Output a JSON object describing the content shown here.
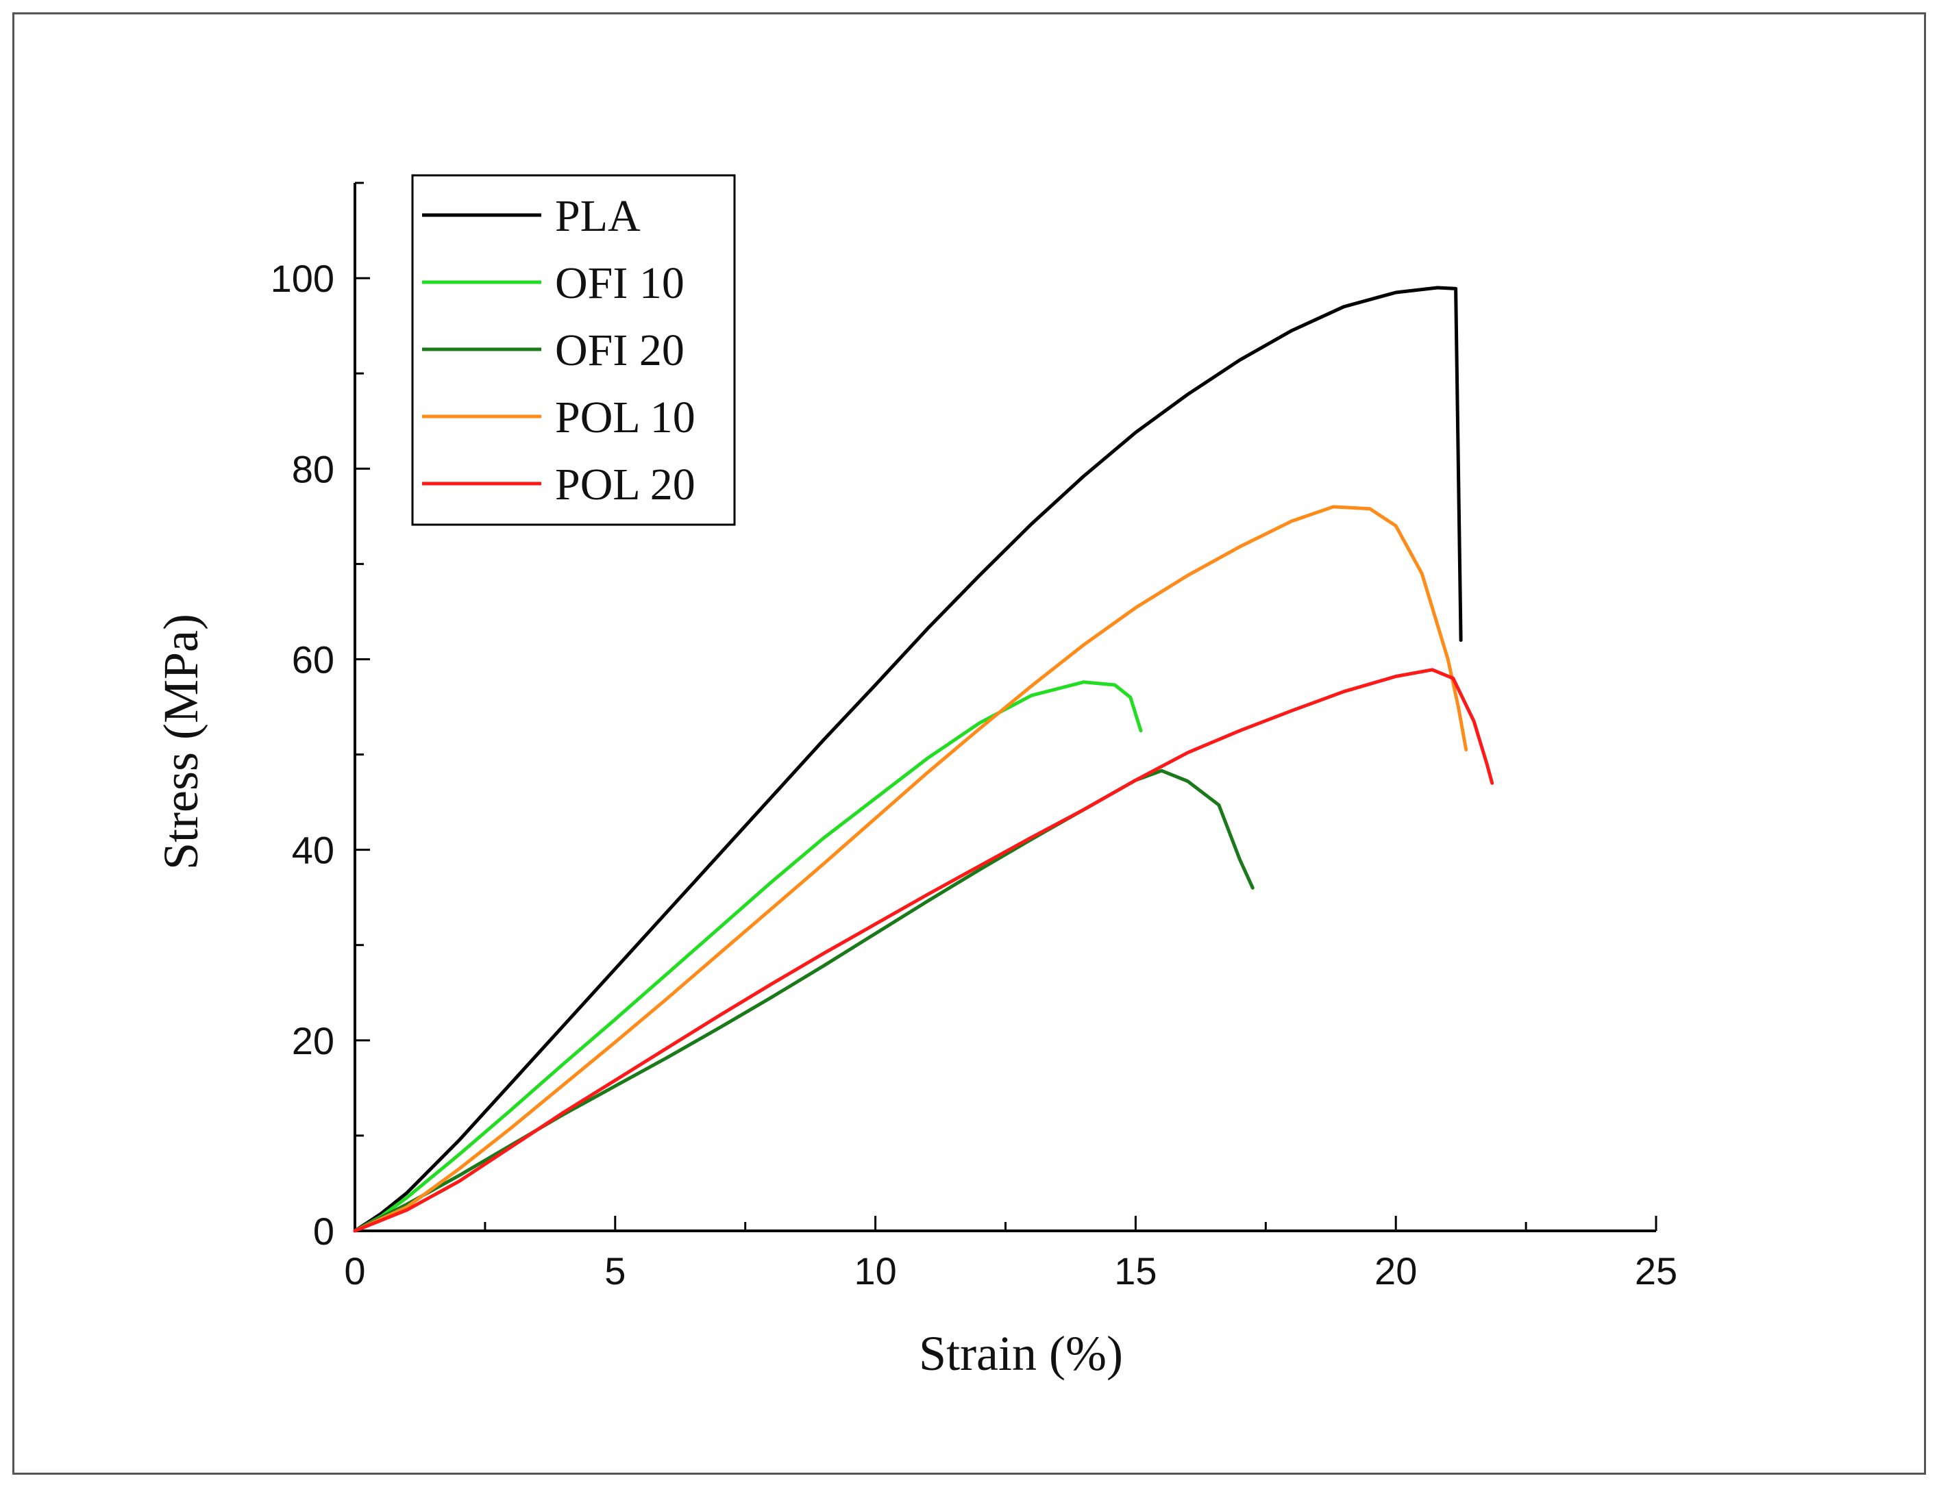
{
  "chart_data": {
    "type": "line",
    "title": "",
    "xlabel": "Strain (%)",
    "ylabel": "Stress (MPa)",
    "xlim": [
      0,
      25
    ],
    "ylim": [
      0,
      110
    ],
    "xticks": [
      0,
      5,
      10,
      15,
      20,
      25
    ],
    "yticks": [
      0,
      20,
      40,
      60,
      80,
      100
    ],
    "x_minor_step": 2.5,
    "y_minor_step": 10,
    "grid": false,
    "legend_position": "top-left",
    "series": [
      {
        "name": "PLA",
        "color": "#000000",
        "x": [
          0,
          0.5,
          1,
          2,
          3,
          4,
          5,
          6,
          7,
          8,
          9,
          10,
          11,
          12,
          13,
          14,
          15,
          16,
          17,
          18,
          19,
          20,
          20.8,
          21.15,
          21.25
        ],
        "y": [
          0,
          1.8,
          4,
          9.5,
          15.5,
          21.5,
          27.5,
          33.5,
          39.5,
          45.5,
          51.5,
          57.3,
          63.2,
          68.8,
          74.2,
          79.2,
          83.8,
          87.8,
          91.4,
          94.5,
          97,
          98.5,
          99,
          98.9,
          62
        ]
      },
      {
        "name": "OFI 10",
        "color": "#22dd22",
        "x": [
          0,
          0.5,
          1,
          2,
          3,
          4,
          5,
          6,
          7,
          8,
          9,
          10,
          11,
          12,
          13,
          14,
          14.6,
          14.9,
          15.1
        ],
        "y": [
          0,
          1.5,
          3.5,
          8,
          12.7,
          17.5,
          22.2,
          27,
          31.8,
          36.6,
          41.2,
          45.4,
          49.6,
          53.3,
          56.2,
          57.6,
          57.3,
          56,
          52.5
        ]
      },
      {
        "name": "OFI 20",
        "color": "#1a7a1a",
        "x": [
          0,
          1,
          2,
          3,
          4,
          5,
          6,
          7,
          8,
          9,
          10,
          11,
          12,
          13,
          14,
          15,
          15.5,
          16,
          16.6,
          17,
          17.25
        ],
        "y": [
          0,
          2.8,
          5.8,
          9,
          12.2,
          15.2,
          18.2,
          21.3,
          24.5,
          27.8,
          31.2,
          34.6,
          37.9,
          41.1,
          44.2,
          47.3,
          48.3,
          47.2,
          44.7,
          39,
          36
        ]
      },
      {
        "name": "POL 10",
        "color": "#ff8c1a",
        "x": [
          0,
          1,
          2,
          3,
          4,
          5,
          6,
          7,
          8,
          9,
          10,
          11,
          12,
          13,
          14,
          15,
          16,
          17,
          18,
          18.8,
          19.5,
          20,
          20.5,
          21,
          21.2,
          21.35
        ],
        "y": [
          0,
          2.5,
          6.5,
          10.8,
          15.3,
          19.8,
          24.4,
          29.1,
          33.8,
          38.5,
          43.3,
          48.1,
          52.7,
          57.2,
          61.5,
          65.4,
          68.8,
          71.8,
          74.5,
          76,
          75.8,
          74,
          69,
          60,
          55,
          50.5
        ]
      },
      {
        "name": "POL 20",
        "color": "#ff1a1a",
        "x": [
          0,
          1,
          2,
          3,
          4,
          5,
          6,
          7,
          8,
          9,
          10,
          11,
          12,
          13,
          14,
          15,
          16,
          17,
          18,
          19,
          20,
          20.7,
          21.1,
          21.5,
          21.75,
          21.85
        ],
        "y": [
          0,
          2.2,
          5.2,
          8.8,
          12.4,
          15.8,
          19.2,
          22.6,
          25.9,
          29.1,
          32.2,
          35.3,
          38.3,
          41.3,
          44.2,
          47.3,
          50.2,
          52.5,
          54.6,
          56.6,
          58.2,
          58.9,
          58,
          53.5,
          49,
          47
        ]
      }
    ]
  }
}
